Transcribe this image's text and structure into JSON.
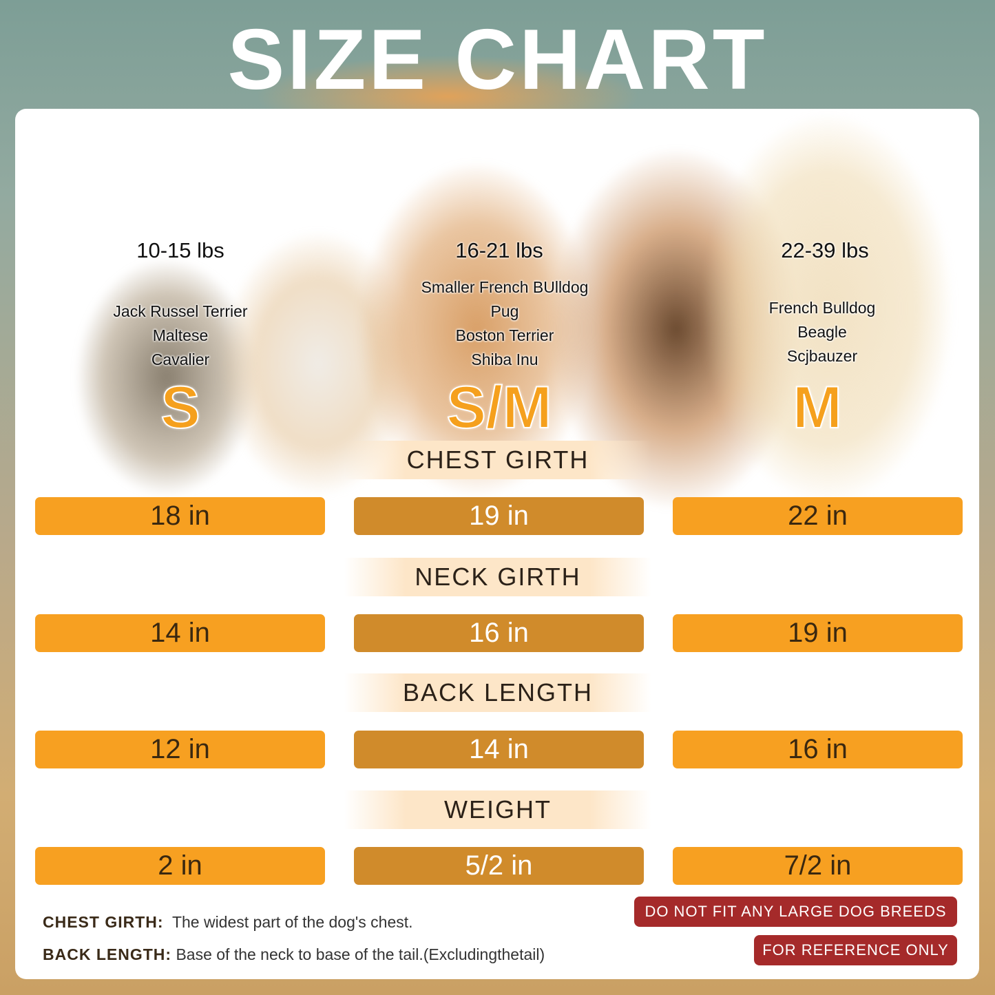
{
  "title": "SIZE CHART",
  "colors": {
    "pill_side": "#f7a021",
    "pill_middle": "#d08b2b",
    "size_letter": "#f5a01d",
    "badge": "#a52a2a"
  },
  "sizes": [
    {
      "label": "S",
      "weight": "10-15 lbs",
      "breeds": [
        "Jack Russel Terrier",
        "Maltese",
        "Cavalier"
      ]
    },
    {
      "label": "S/M",
      "weight": "16-21 lbs",
      "breeds": [
        "Smaller French BUlldog",
        "Pug",
        "Boston Terrier",
        "Shiba Inu"
      ]
    },
    {
      "label": "M",
      "weight": "22-39 lbs",
      "breeds": [
        "French Bulldog",
        "Beagle",
        "Scjbauzer"
      ]
    }
  ],
  "measurements": [
    {
      "name": "CHEST GIRTH",
      "values": [
        "18 in",
        "19 in",
        "22 in"
      ]
    },
    {
      "name": "NECK GIRTH",
      "values": [
        "14 in",
        "16 in",
        "19 in"
      ]
    },
    {
      "name": "BACK LENGTH",
      "values": [
        "12 in",
        "14 in",
        "16 in"
      ]
    },
    {
      "name": "WEIGHT",
      "values": [
        "2 in",
        "5/2 in",
        "7/2 in"
      ]
    }
  ],
  "notes": [
    {
      "term": "CHEST GIRTH:",
      "definition": "The widest part of the dog's chest."
    },
    {
      "term": "BACK LENGTH:",
      "definition": "Base of the neck to base of the tail.(Excludingthetail)"
    }
  ],
  "badges": [
    "DO NOT FIT ANY LARGE DOG BREEDS",
    "FOR REFERENCE ONLY"
  ]
}
